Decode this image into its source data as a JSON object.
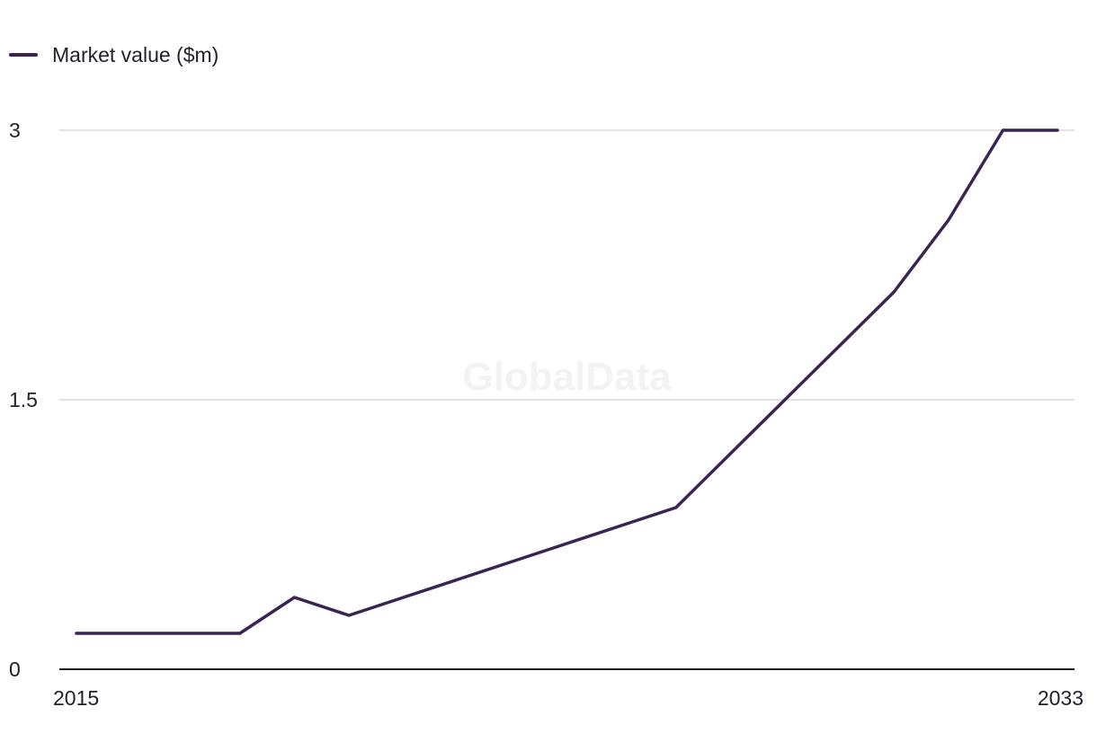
{
  "chart_data": {
    "type": "line",
    "x": [
      2015,
      2016,
      2017,
      2018,
      2019,
      2020,
      2021,
      2022,
      2023,
      2024,
      2025,
      2026,
      2027,
      2028,
      2029,
      2030,
      2031,
      2032,
      2033
    ],
    "series": [
      {
        "name": "Market value ($m)",
        "values": [
          0.2,
          0.2,
          0.2,
          0.2,
          0.4,
          0.3,
          0.4,
          0.5,
          0.6,
          0.7,
          0.8,
          0.9,
          1.2,
          1.5,
          1.8,
          2.1,
          2.5,
          3.0,
          3.0
        ]
      }
    ],
    "xticks": [
      "2015",
      "2033"
    ],
    "yticks": [
      "0",
      "1.5",
      "3"
    ],
    "ylim": [
      0,
      3
    ],
    "grid": true,
    "legend_position": "top-left",
    "watermark": "GlobalData",
    "colors": {
      "series": "#3a2451",
      "grid": "#d9d9d9",
      "axis": "#1a1a1a"
    }
  }
}
